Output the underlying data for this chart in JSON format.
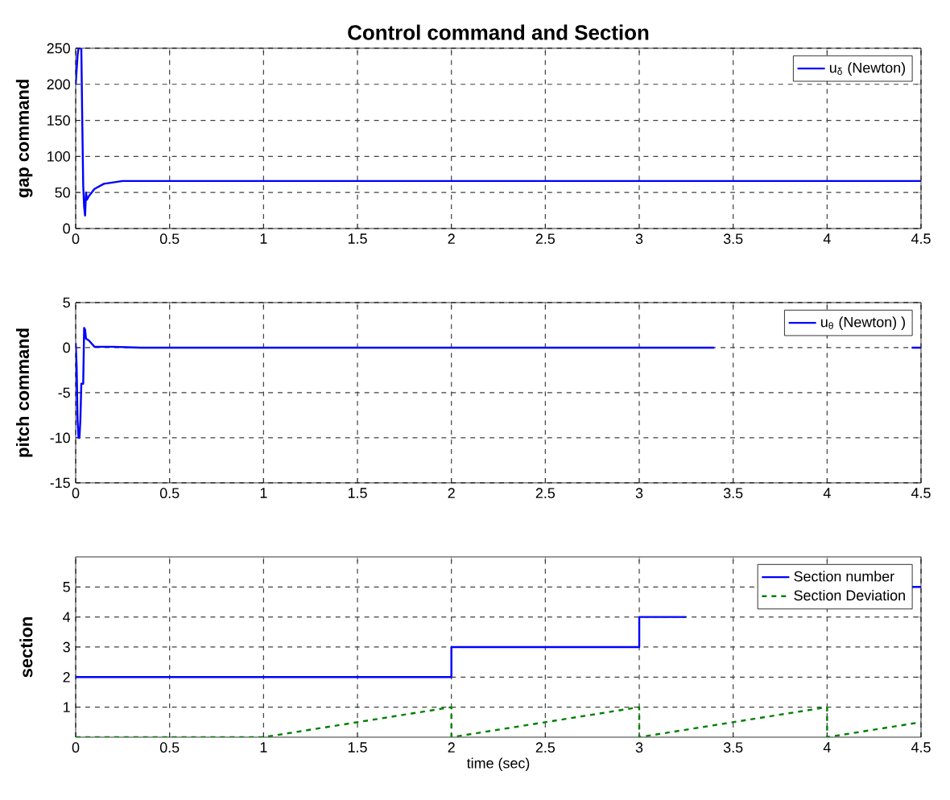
{
  "chart_data": [
    {
      "type": "line",
      "title": "Control command and Section",
      "ylabel": "gap command",
      "xlim": [
        0,
        4.5
      ],
      "ylim": [
        0,
        250
      ],
      "xticks": [
        0,
        0.5,
        1,
        1.5,
        2,
        2.5,
        3,
        3.5,
        4,
        4.5
      ],
      "yticks": [
        0,
        50,
        100,
        150,
        200,
        250
      ],
      "grid": true,
      "legend": "top right",
      "series": [
        {
          "name": "u$_{δ}$ (Newton)",
          "color": "#0000ff",
          "x": [
            0,
            0.01,
            0.015,
            0.03,
            0.035,
            0.04,
            0.045,
            0.05,
            0.055,
            0.06,
            0.07,
            0.1,
            0.15,
            0.2,
            0.25,
            4.5
          ],
          "values": [
            200,
            240,
            250,
            250,
            150,
            60,
            30,
            18,
            50,
            40,
            45,
            55,
            62,
            64,
            66,
            66
          ]
        }
      ]
    },
    {
      "type": "line",
      "ylabel": "pitch command",
      "xlim": [
        0,
        4.5
      ],
      "ylim": [
        -15,
        5
      ],
      "xticks": [
        0,
        0.5,
        1,
        1.5,
        2,
        2.5,
        3,
        3.5,
        4,
        4.5
      ],
      "yticks": [
        -15,
        -10,
        -5,
        0,
        5
      ],
      "grid": true,
      "legend": "top right",
      "series": [
        {
          "name": "u$_{θ}$ (Newton) )",
          "color": "#0000ff",
          "x": [
            0,
            0.005,
            0.01,
            0.015,
            0.02,
            0.025,
            0.03,
            0.04,
            0.045,
            0.05,
            0.055,
            0.07,
            0.1,
            0.2,
            0.35,
            3.4,
            3.45,
            4.45,
            4.5
          ],
          "values": [
            0.5,
            -2,
            -8,
            -10,
            -10,
            -8,
            -4,
            -4,
            2.2,
            2,
            1,
            0.8,
            0.1,
            0.1,
            0,
            0,
            null,
            0,
            0
          ]
        }
      ]
    },
    {
      "type": "line",
      "ylabel": "section",
      "xlabel": "time (sec)",
      "xlim": [
        0,
        4.5
      ],
      "ylim": [
        0,
        6
      ],
      "xticks": [
        0,
        0.5,
        1,
        1.5,
        2,
        2.5,
        3,
        3.5,
        4,
        4.5
      ],
      "yticks": [
        1,
        2,
        3,
        4,
        5
      ],
      "grid": true,
      "legend": "top right",
      "series": [
        {
          "name": "Section number",
          "type": "step",
          "color": "#0000ff",
          "x": [
            0,
            2,
            3,
            3.25,
            3.3,
            4.45,
            4.5
          ],
          "values": [
            2,
            3,
            4,
            4,
            null,
            5,
            5
          ]
        },
        {
          "name": "Section Deviation",
          "type": "line",
          "line_style": "dashed",
          "color": "#008000",
          "x": [
            0,
            1,
            2,
            2,
            3,
            3,
            4,
            4,
            4.5
          ],
          "values": [
            0,
            0,
            1,
            0,
            1,
            0,
            1,
            0,
            0.5
          ]
        }
      ]
    }
  ]
}
